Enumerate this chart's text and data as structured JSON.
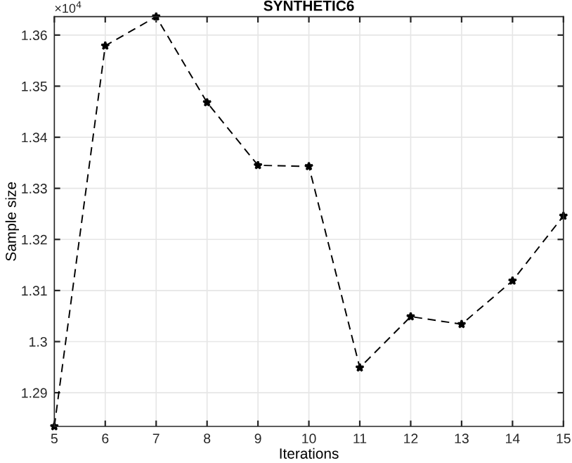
{
  "chart_data": {
    "type": "line",
    "title": "SYNTHETIC6",
    "xlabel": "Iterations",
    "ylabel": "Sample size",
    "annotations": [
      "×10$^{4}$"
    ],
    "x": [
      5,
      6,
      7,
      8,
      9,
      10,
      11,
      12,
      13,
      14,
      15
    ],
    "series": [
      {
        "color": "#000000",
        "values": [
          1.2834,
          1.3579,
          1.3636,
          1.3468,
          1.3345,
          1.3343,
          1.2949,
          1.3049,
          1.3034,
          1.3119,
          1.3246
        ]
      }
    ],
    "xlim": [
      5,
      15
    ],
    "xticks": [
      5,
      6,
      7,
      8,
      9,
      10,
      11,
      12,
      13,
      14,
      15
    ],
    "ylim": [
      1.2834,
      1.3636
    ],
    "yticks": [
      1.29,
      1.3,
      1.31,
      1.32,
      1.33,
      1.34,
      1.35,
      1.36
    ],
    "grid": true,
    "marker": "star",
    "line_style": "dashed"
  }
}
